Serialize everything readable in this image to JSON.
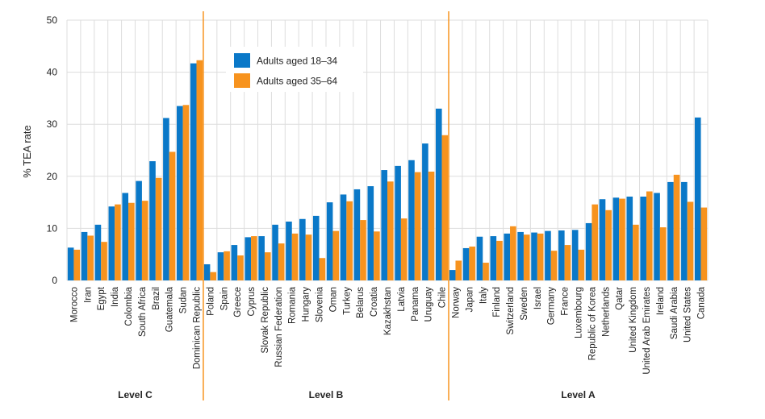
{
  "chart_data": {
    "type": "bar",
    "title": "",
    "ylabel": "% TEA rate",
    "xlabel": "",
    "ylim": [
      0,
      50
    ],
    "yticks": [
      0,
      10,
      20,
      30,
      40,
      50
    ],
    "grid": true,
    "legend_position": "top-center",
    "colors": {
      "series_1": "#0a78c8",
      "series_2": "#f7931e",
      "divider": "#f7931e",
      "grid": "#dddddd"
    },
    "series": [
      {
        "name": "Adults aged 18–34",
        "values": [
          6.3,
          9.3,
          10.7,
          14.2,
          16.8,
          19.1,
          22.9,
          31.2,
          33.5,
          41.7,
          3.1,
          5.4,
          6.8,
          8.3,
          8.5,
          10.7,
          11.3,
          11.8,
          12.4,
          15.0,
          16.5,
          17.5,
          18.1,
          21.2,
          22.0,
          23.1,
          26.3,
          33.0,
          2.0,
          6.2,
          8.4,
          8.5,
          9.0,
          9.3,
          9.2,
          9.5,
          9.6,
          9.7,
          11.0,
          15.6,
          15.9,
          16.1,
          16.1,
          16.8,
          18.9,
          18.9,
          31.3
        ]
      },
      {
        "name": "Adults aged 35–64",
        "values": [
          5.9,
          8.6,
          7.4,
          14.6,
          14.9,
          15.3,
          19.7,
          24.7,
          33.7,
          42.3,
          1.6,
          5.6,
          4.8,
          8.5,
          5.4,
          7.1,
          9.0,
          8.8,
          4.3,
          9.5,
          15.2,
          11.6,
          9.4,
          19.0,
          11.9,
          20.8,
          20.9,
          27.9,
          3.8,
          6.5,
          3.4,
          7.6,
          10.4,
          8.8,
          9.0,
          5.7,
          6.8,
          5.9,
          14.6,
          13.5,
          15.7,
          10.7,
          17.1,
          10.2,
          20.3,
          15.1,
          14.0
        ]
      }
    ],
    "categories": [
      "Morocco",
      "Iran",
      "Egypt",
      "India",
      "Colombia",
      "South Africa",
      "Brazil",
      "Guatemala",
      "Sudan",
      "Dominican Republic",
      "Poland",
      "Spain",
      "Greece",
      "Cyprus",
      "Slovak Republic",
      "Russian Federation",
      "Romania",
      "Hungary",
      "Slovenia",
      "Oman",
      "Turkey",
      "Belarus",
      "Croatia",
      "Kazakhstan",
      "Latvia",
      "Panama",
      "Uruguay",
      "Chile",
      "Norway",
      "Japan",
      "Italy",
      "Finland",
      "Switzerland",
      "Sweden",
      "Israel",
      "Germany",
      "France",
      "Luxembourg",
      "Republic of Korea",
      "Netherlands",
      "Qatar",
      "United Kingdom",
      "United Arab Emirates",
      "Ireland",
      "Saudi Arabia",
      "United States",
      "Canada"
    ],
    "groups": [
      {
        "label": "Level C",
        "start": 0,
        "end": 9
      },
      {
        "label": "Level B",
        "start": 10,
        "end": 27
      },
      {
        "label": "Level A",
        "start": 28,
        "end": 46
      }
    ]
  }
}
